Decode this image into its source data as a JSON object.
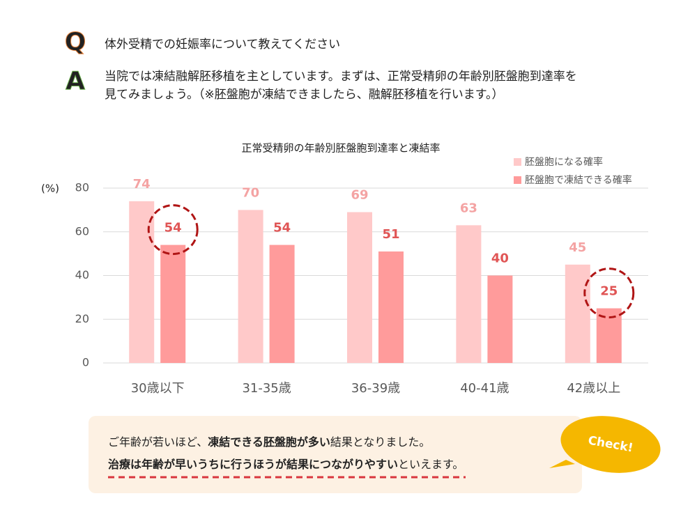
{
  "qa": {
    "q_icon": "Q",
    "question": "体外受精での妊娠率について教えてください",
    "a_icon": "A",
    "answer_lines": [
      "当院では凍結融解胚移植を主としています。まずは、正常受精卵の年齢別胚盤胞到達率を",
      "見てみましょう。（※胚盤胞が凍結できましたら、融解胚移植を行います。）"
    ]
  },
  "chart_data": {
    "type": "bar",
    "title": "正常受精卵の年齢別胚盤胞到達率と凍結率",
    "y_label": "(%)",
    "categories": [
      "30歳以下",
      "31-35歳",
      "36-39歳",
      "40-41歳",
      "42歳以上"
    ],
    "series": [
      {
        "name": "胚盤胞になる確率",
        "color": "#ffc9c9",
        "label_color": "#f4a3a3",
        "values": [
          74,
          70,
          69,
          63,
          45
        ]
      },
      {
        "name": "胚盤胞で凍結できる確率",
        "color": "#ff9b9b",
        "label_color": "#e05555",
        "values": [
          54,
          54,
          51,
          40,
          25
        ]
      }
    ],
    "ylim": [
      0,
      80
    ],
    "yticks": [
      0,
      20,
      40,
      60,
      80
    ],
    "grid": true,
    "legend": "top-right"
  },
  "note": {
    "line1": [
      "ご年齢が若いほど、",
      "凍結できる胚盤胞が多い",
      "結果となりました。"
    ],
    "line2": [
      "治療は年齢が早いうちに行うほうが結果につながりやすい",
      "といえます。"
    ],
    "badge": "Check!"
  }
}
